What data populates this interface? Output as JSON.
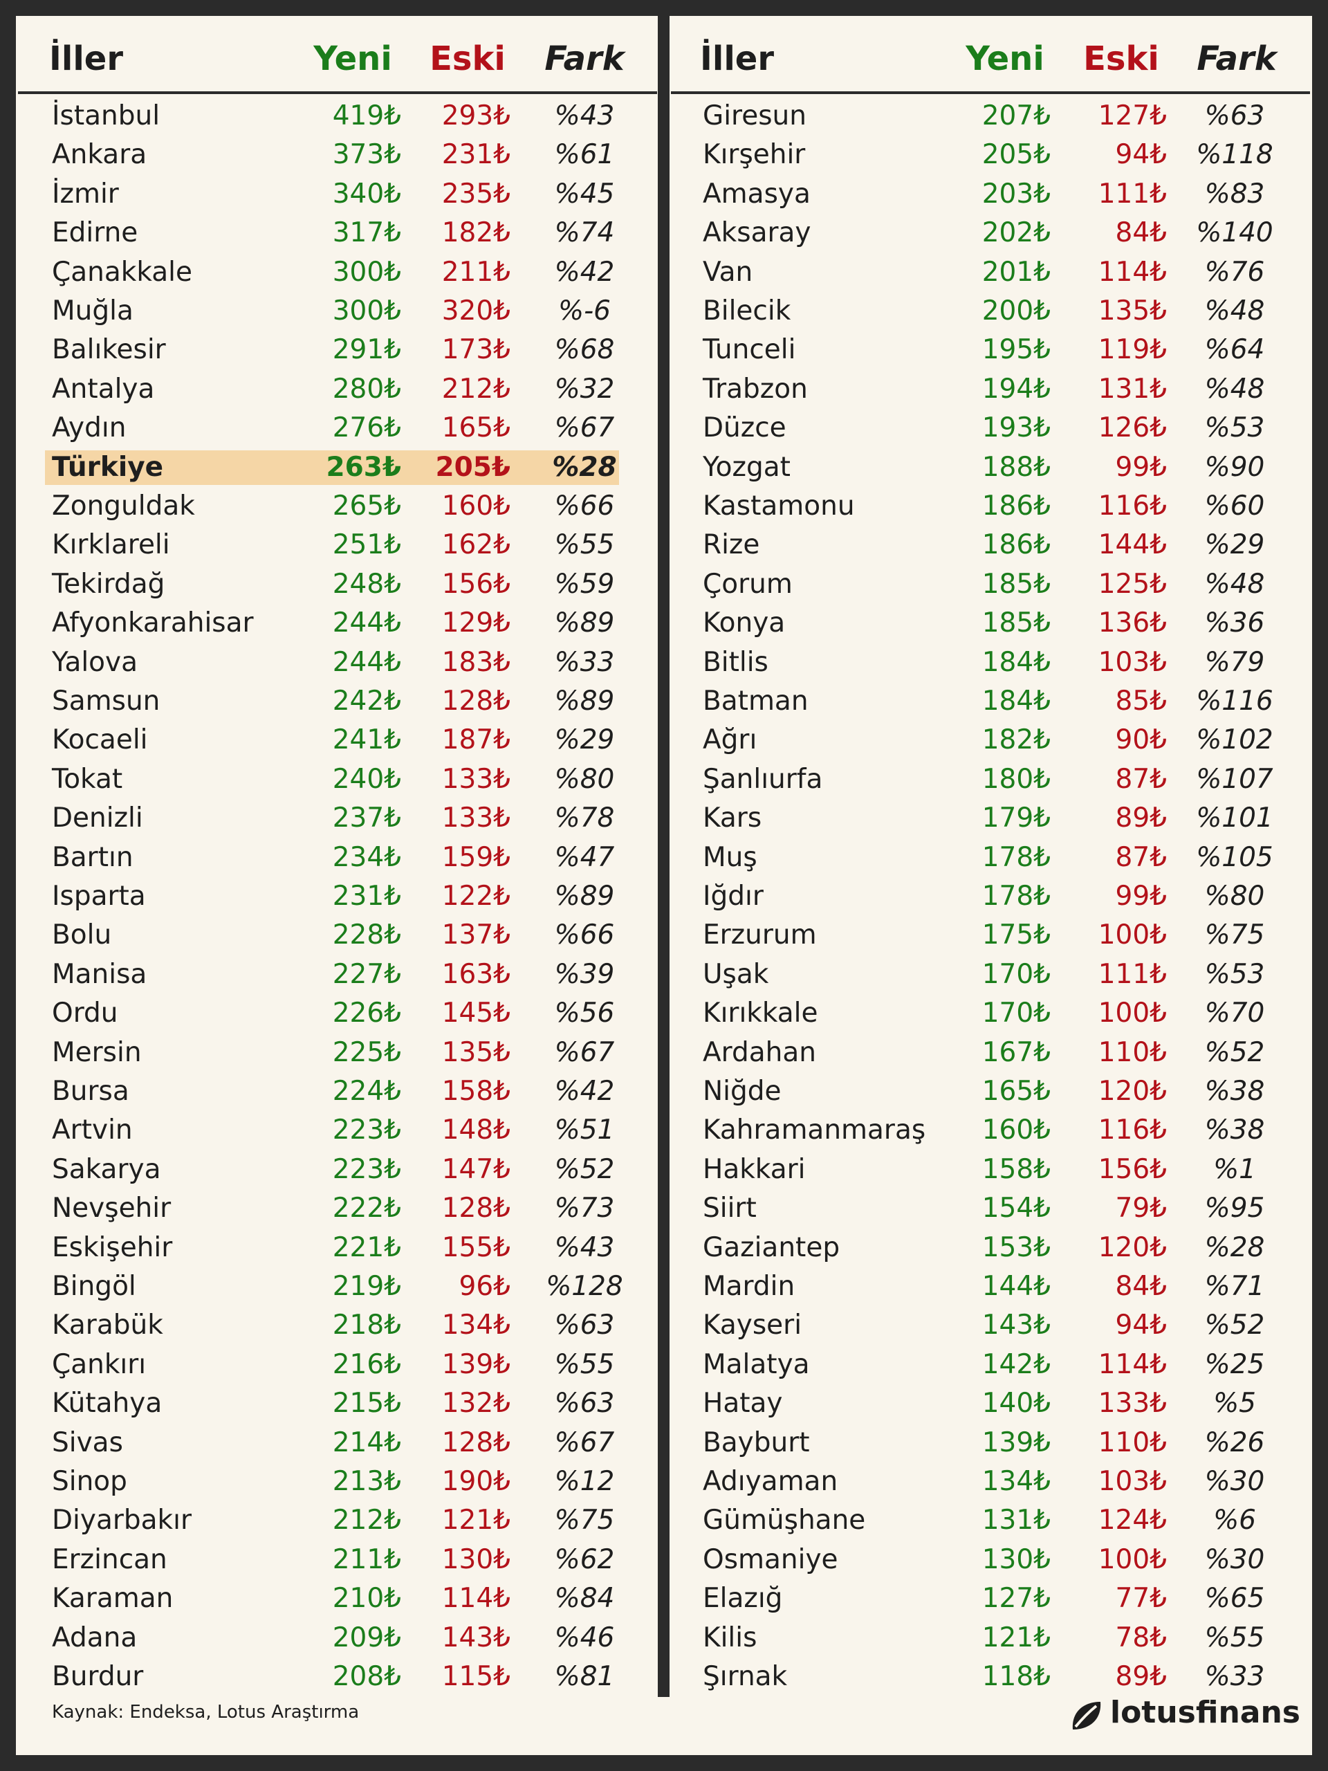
{
  "tables": [
    {
      "header": [
        "İller",
        "Yeni",
        "Eski",
        "Fark"
      ],
      "rows": [
        [
          "İstanbul",
          "419₺",
          "293₺",
          "%43"
        ],
        [
          "Ankara",
          "373₺",
          "231₺",
          "%61"
        ],
        [
          "İzmir",
          "340₺",
          "235₺",
          "%45"
        ],
        [
          "Edirne",
          "317₺",
          "182₺",
          "%74"
        ],
        [
          "Çanakkale",
          "300₺",
          "211₺",
          "%42"
        ],
        [
          "Muğla",
          "300₺",
          "320₺",
          "%-6"
        ],
        [
          "Balıkesir",
          "291₺",
          "173₺",
          "%68"
        ],
        [
          "Antalya",
          "280₺",
          "212₺",
          "%32"
        ],
        [
          "Aydın",
          "276₺",
          "165₺",
          "%67"
        ],
        [
          "Türkiye",
          "263₺",
          "205₺",
          "%28"
        ],
        [
          "Zonguldak",
          "265₺",
          "160₺",
          "%66"
        ],
        [
          "Kırklareli",
          "251₺",
          "162₺",
          "%55"
        ],
        [
          "Tekirdağ",
          "248₺",
          "156₺",
          "%59"
        ],
        [
          "Afyonkarahisar",
          "244₺",
          "129₺",
          "%89"
        ],
        [
          "Yalova",
          "244₺",
          "183₺",
          "%33"
        ],
        [
          "Samsun",
          "242₺",
          "128₺",
          "%89"
        ],
        [
          "Kocaeli",
          "241₺",
          "187₺",
          "%29"
        ],
        [
          "Tokat",
          "240₺",
          "133₺",
          "%80"
        ],
        [
          "Denizli",
          "237₺",
          "133₺",
          "%78"
        ],
        [
          "Bartın",
          "234₺",
          "159₺",
          "%47"
        ],
        [
          "Isparta",
          "231₺",
          "122₺",
          "%89"
        ],
        [
          "Bolu",
          "228₺",
          "137₺",
          "%66"
        ],
        [
          "Manisa",
          "227₺",
          "163₺",
          "%39"
        ],
        [
          "Ordu",
          "226₺",
          "145₺",
          "%56"
        ],
        [
          "Mersin",
          "225₺",
          "135₺",
          "%67"
        ],
        [
          "Bursa",
          "224₺",
          "158₺",
          "%42"
        ],
        [
          "Artvin",
          "223₺",
          "148₺",
          "%51"
        ],
        [
          "Sakarya",
          "223₺",
          "147₺",
          "%52"
        ],
        [
          "Nevşehir",
          "222₺",
          "128₺",
          "%73"
        ],
        [
          "Eskişehir",
          "221₺",
          "155₺",
          "%43"
        ],
        [
          "Bingöl",
          "219₺",
          "96₺",
          "%128"
        ],
        [
          "Karabük",
          "218₺",
          "134₺",
          "%63"
        ],
        [
          "Çankırı",
          "216₺",
          "139₺",
          "%55"
        ],
        [
          "Kütahya",
          "215₺",
          "132₺",
          "%63"
        ],
        [
          "Sivas",
          "214₺",
          "128₺",
          "%67"
        ],
        [
          "Sinop",
          "213₺",
          "190₺",
          "%12"
        ],
        [
          "Diyarbakır",
          "212₺",
          "121₺",
          "%75"
        ],
        [
          "Erzincan",
          "211₺",
          "130₺",
          "%62"
        ],
        [
          "Karaman",
          "210₺",
          "114₺",
          "%84"
        ],
        [
          "Adana",
          "209₺",
          "143₺",
          "%46"
        ],
        [
          "Burdur",
          "208₺",
          "115₺",
          "%81"
        ]
      ]
    },
    {
      "header": [
        "İller",
        "Yeni",
        "Eski",
        "Fark"
      ],
      "rows": [
        [
          "Giresun",
          "207₺",
          "127₺",
          "%63"
        ],
        [
          "Kırşehir",
          "205₺",
          "94₺",
          "%118"
        ],
        [
          "Amasya",
          "203₺",
          "111₺",
          "%83"
        ],
        [
          "Aksaray",
          "202₺",
          "84₺",
          "%140"
        ],
        [
          "Van",
          "201₺",
          "114₺",
          "%76"
        ],
        [
          "Bilecik",
          "200₺",
          "135₺",
          "%48"
        ],
        [
          "Tunceli",
          "195₺",
          "119₺",
          "%64"
        ],
        [
          "Trabzon",
          "194₺",
          "131₺",
          "%48"
        ],
        [
          "Düzce",
          "193₺",
          "126₺",
          "%53"
        ],
        [
          "Yozgat",
          "188₺",
          "99₺",
          "%90"
        ],
        [
          "Kastamonu",
          "186₺",
          "116₺",
          "%60"
        ],
        [
          "Rize",
          "186₺",
          "144₺",
          "%29"
        ],
        [
          "Çorum",
          "185₺",
          "125₺",
          "%48"
        ],
        [
          "Konya",
          "185₺",
          "136₺",
          "%36"
        ],
        [
          "Bitlis",
          "184₺",
          "103₺",
          "%79"
        ],
        [
          "Batman",
          "184₺",
          "85₺",
          "%116"
        ],
        [
          "Ağrı",
          "182₺",
          "90₺",
          "%102"
        ],
        [
          "Şanlıurfa",
          "180₺",
          "87₺",
          "%107"
        ],
        [
          "Kars",
          "179₺",
          "89₺",
          "%101"
        ],
        [
          "Muş",
          "178₺",
          "87₺",
          "%105"
        ],
        [
          "Iğdır",
          "178₺",
          "99₺",
          "%80"
        ],
        [
          "Erzurum",
          "175₺",
          "100₺",
          "%75"
        ],
        [
          "Uşak",
          "170₺",
          "111₺",
          "%53"
        ],
        [
          "Kırıkkale",
          "170₺",
          "100₺",
          "%70"
        ],
        [
          "Ardahan",
          "167₺",
          "110₺",
          "%52"
        ],
        [
          "Niğde",
          "165₺",
          "120₺",
          "%38"
        ],
        [
          "Kahramanmaraş",
          "160₺",
          "116₺",
          "%38"
        ],
        [
          "Hakkari",
          "158₺",
          "156₺",
          "%1"
        ],
        [
          "Siirt",
          "154₺",
          "79₺",
          "%95"
        ],
        [
          "Gaziantep",
          "153₺",
          "120₺",
          "%28"
        ],
        [
          "Mardin",
          "144₺",
          "84₺",
          "%71"
        ],
        [
          "Kayseri",
          "143₺",
          "94₺",
          "%52"
        ],
        [
          "Malatya",
          "142₺",
          "114₺",
          "%25"
        ],
        [
          "Hatay",
          "140₺",
          "133₺",
          "%5"
        ],
        [
          "Bayburt",
          "139₺",
          "110₺",
          "%26"
        ],
        [
          "Adıyaman",
          "134₺",
          "103₺",
          "%30"
        ],
        [
          "Gümüşhane",
          "131₺",
          "124₺",
          "%6"
        ],
        [
          "Osmaniye",
          "130₺",
          "100₺",
          "%30"
        ],
        [
          "Elazığ",
          "127₺",
          "77₺",
          "%65"
        ],
        [
          "Kilis",
          "121₺",
          "78₺",
          "%55"
        ],
        [
          "Şırnak",
          "118₺",
          "89₺",
          "%33"
        ]
      ]
    }
  ],
  "source": "Kaynak: Endeksa, Lotus Araştırma",
  "brand": "lotusfinans"
}
